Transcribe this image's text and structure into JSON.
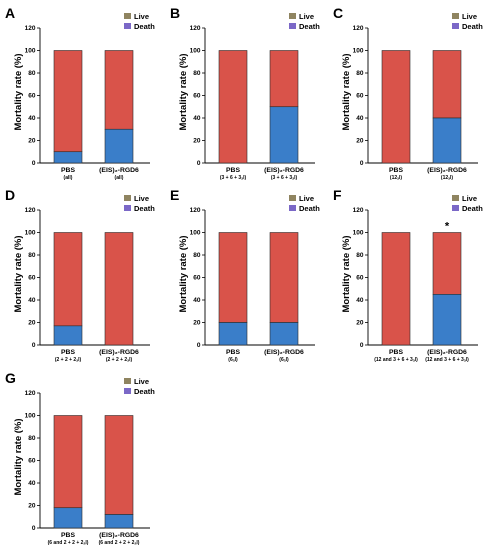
{
  "figure": {
    "colors": {
      "live": "#d9534a",
      "death": "#3a7ec9",
      "live_legend": "#8f8460",
      "death_legend": "#7b68c7",
      "axis": "#000000"
    }
  },
  "chart_data": [
    {
      "panel": "A",
      "type": "bar",
      "stacked": true,
      "ylabel": "Mortality rate (%)",
      "ylim": [
        0,
        120
      ],
      "yticks": [
        "0",
        "20",
        "40",
        "60",
        "80",
        "100",
        "120"
      ],
      "legend": [
        "Live",
        "Death"
      ],
      "legend_position": "top-right",
      "categories": [
        {
          "label": "PBS",
          "sub": "(all)"
        },
        {
          "label": "(EIS)₂-RGD6",
          "sub": "(all)"
        }
      ],
      "series": [
        {
          "name": "Death",
          "values": [
            10,
            30
          ]
        },
        {
          "name": "Live",
          "values": [
            90,
            70
          ]
        }
      ],
      "annotation": ""
    },
    {
      "panel": "B",
      "type": "bar",
      "stacked": true,
      "ylabel": "Mortality rate (%)",
      "ylim": [
        0,
        120
      ],
      "yticks": [
        "0",
        "20",
        "40",
        "60",
        "80",
        "100",
        "120"
      ],
      "legend": [
        "Live",
        "Death"
      ],
      "legend_position": "top-right",
      "categories": [
        {
          "label": "PBS",
          "sub": "(3 + 6 + 3ₐl)"
        },
        {
          "label": "(EIS)₂-RGD6",
          "sub": "(3 + 6 + 3ₐl)"
        }
      ],
      "series": [
        {
          "name": "Death",
          "values": [
            0,
            50
          ]
        },
        {
          "name": "Live",
          "values": [
            100,
            50
          ]
        }
      ],
      "annotation": ""
    },
    {
      "panel": "C",
      "type": "bar",
      "stacked": true,
      "ylabel": "Mortality rate (%)",
      "ylim": [
        0,
        120
      ],
      "yticks": [
        "0",
        "20",
        "40",
        "60",
        "80",
        "100",
        "120"
      ],
      "legend": [
        "Live",
        "Death"
      ],
      "legend_position": "top-right",
      "categories": [
        {
          "label": "PBS",
          "sub": "(12ₐl)"
        },
        {
          "label": "(EIS)₂-RGD6",
          "sub": "(12ₐl)"
        }
      ],
      "series": [
        {
          "name": "Death",
          "values": [
            0,
            40
          ]
        },
        {
          "name": "Live",
          "values": [
            100,
            60
          ]
        }
      ],
      "annotation": ""
    },
    {
      "panel": "D",
      "type": "bar",
      "stacked": true,
      "ylabel": "Mortality rate (%)",
      "ylim": [
        0,
        120
      ],
      "yticks": [
        "0",
        "20",
        "40",
        "60",
        "80",
        "100",
        "120"
      ],
      "legend": [
        "Live",
        "Death"
      ],
      "legend_position": "top-right",
      "categories": [
        {
          "label": "PBS",
          "sub": "(2 + 2 + 2ₐl)"
        },
        {
          "label": "(EIS)₂-RGD6",
          "sub": "(2 + 2 + 2ₐl)"
        }
      ],
      "series": [
        {
          "name": "Death",
          "values": [
            17,
            0
          ]
        },
        {
          "name": "Live",
          "values": [
            83,
            100
          ]
        }
      ],
      "annotation": ""
    },
    {
      "panel": "E",
      "type": "bar",
      "stacked": true,
      "ylabel": "Mortality rate (%)",
      "ylim": [
        0,
        120
      ],
      "yticks": [
        "0",
        "20",
        "40",
        "60",
        "80",
        "100",
        "120"
      ],
      "legend": [
        "Live",
        "Death"
      ],
      "legend_position": "top-right",
      "categories": [
        {
          "label": "PBS",
          "sub": "(6ₐl)"
        },
        {
          "label": "(EIS)₂-RGD6",
          "sub": "(6ₐl)"
        }
      ],
      "series": [
        {
          "name": "Death",
          "values": [
            20,
            20
          ]
        },
        {
          "name": "Live",
          "values": [
            80,
            80
          ]
        }
      ],
      "annotation": ""
    },
    {
      "panel": "F",
      "type": "bar",
      "stacked": true,
      "ylabel": "Mortality rate (%)",
      "ylim": [
        0,
        120
      ],
      "yticks": [
        "0",
        "20",
        "40",
        "60",
        "80",
        "100",
        "120"
      ],
      "legend": [
        "Live",
        "Death"
      ],
      "legend_position": "top-right",
      "categories": [
        {
          "label": "PBS",
          "sub": "(12 and 3 + 6 + 3ₐl)"
        },
        {
          "label": "(EIS)₂-RGD6",
          "sub": "(12 and 3 + 6 + 3ₐl)"
        }
      ],
      "series": [
        {
          "name": "Death",
          "values": [
            0,
            45
          ]
        },
        {
          "name": "Live",
          "values": [
            100,
            55
          ]
        }
      ],
      "annotation": "*"
    },
    {
      "panel": "G",
      "type": "bar",
      "stacked": true,
      "ylabel": "Mortality rate (%)",
      "ylim": [
        0,
        120
      ],
      "yticks": [
        "0",
        "20",
        "40",
        "60",
        "80",
        "100",
        "120"
      ],
      "legend": [
        "Live",
        "Death"
      ],
      "legend_position": "top-right",
      "categories": [
        {
          "label": "PBS",
          "sub": "(6 and 2 + 2 + 2ₐl)"
        },
        {
          "label": "(EIS)₂-RGD6",
          "sub": "(6 and 2 + 2 + 2ₐl)"
        }
      ],
      "series": [
        {
          "name": "Death",
          "values": [
            18,
            12
          ]
        },
        {
          "name": "Live",
          "values": [
            82,
            88
          ]
        }
      ],
      "annotation": ""
    }
  ]
}
